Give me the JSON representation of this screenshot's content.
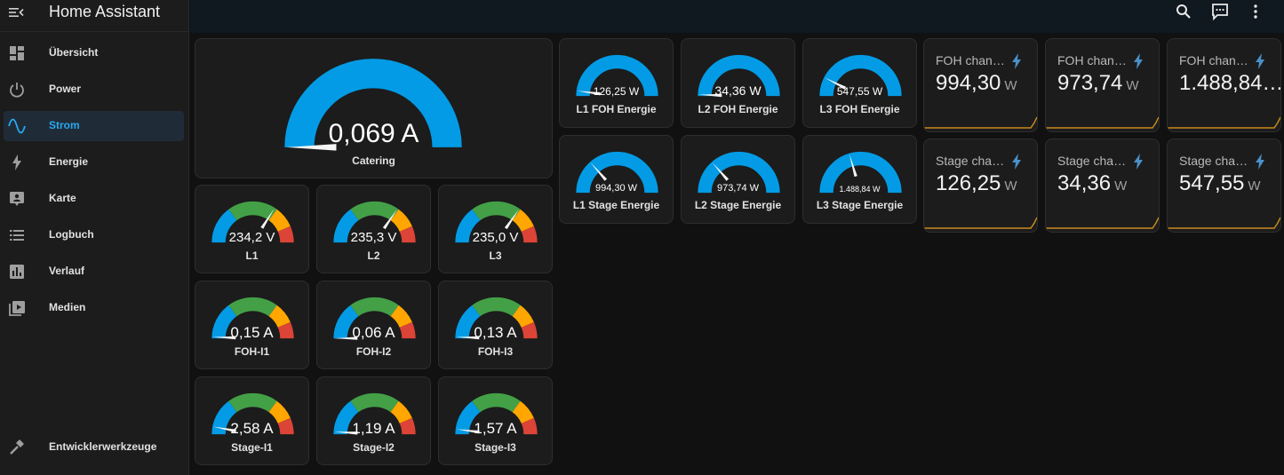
{
  "app": {
    "title": "Home Assistant"
  },
  "sidebar": {
    "items": [
      {
        "label": "Übersicht",
        "icon": "dashboard-icon",
        "active": false
      },
      {
        "label": "Power",
        "icon": "power-icon",
        "active": false
      },
      {
        "label": "Strom",
        "icon": "sine-wave-icon",
        "active": true
      },
      {
        "label": "Energie",
        "icon": "lightning-icon",
        "active": false
      },
      {
        "label": "Karte",
        "icon": "map-account-icon",
        "active": false
      },
      {
        "label": "Logbuch",
        "icon": "list-icon",
        "active": false
      },
      {
        "label": "Verlauf",
        "icon": "chart-icon",
        "active": false
      },
      {
        "label": "Medien",
        "icon": "media-play-icon",
        "active": false
      }
    ],
    "footer": {
      "label": "Entwicklerwerkzeuge",
      "icon": "hammer-icon"
    }
  },
  "topbar": {
    "icons": [
      "search-icon",
      "assist-chat-icon",
      "more-vert-icon"
    ]
  },
  "colors": {
    "accent": "#2aa8ef",
    "gauge_blue": "#039be5",
    "gauge_green": "#43a047",
    "gauge_yellow": "#ffa600",
    "gauge_red": "#db4437",
    "spark": "#c98a1d"
  },
  "catering": {
    "value": "0,069 A",
    "name": "Catering",
    "fraction": 0.0
  },
  "voltage": [
    {
      "value": "234,2 V",
      "name": "L1",
      "fraction": 0.68
    },
    {
      "value": "235,3 V",
      "name": "L2",
      "fraction": 0.69
    },
    {
      "value": "235,0 V",
      "name": "L3",
      "fraction": 0.69
    }
  ],
  "foh_current": [
    {
      "value": "0,15 A",
      "name": "FOH-I1",
      "fraction": 0.01
    },
    {
      "value": "0,06 A",
      "name": "FOH-I2",
      "fraction": 0.0
    },
    {
      "value": "0,13 A",
      "name": "FOH-I3",
      "fraction": 0.01
    }
  ],
  "stage_current": [
    {
      "value": "2,58 A",
      "name": "Stage-I1",
      "fraction": 0.06
    },
    {
      "value": "1,19 A",
      "name": "Stage-I2",
      "fraction": 0.02
    },
    {
      "value": "1,57 A",
      "name": "Stage-I3",
      "fraction": 0.04
    }
  ],
  "foh_energy": [
    {
      "value": "126,25 W",
      "name": "L1 FOH Energie",
      "fraction": 0.04
    },
    {
      "value": "34,36 W",
      "name": "L2 FOH Energie",
      "fraction": 0.01
    },
    {
      "value": "547,55 W",
      "name": "L3 FOH Energie",
      "fraction": 0.15
    }
  ],
  "stage_energy": [
    {
      "value": "994,30 W",
      "name": "L1 Stage Energie",
      "fraction": 0.27
    },
    {
      "value": "973,74 W",
      "name": "L2 Stage Energie",
      "fraction": 0.27
    },
    {
      "value": "1.488,84 W",
      "name": "L3 Stage Energie",
      "fraction": 0.41
    }
  ],
  "foh_sensors": [
    {
      "name": "FOH chann…",
      "value": "994,30",
      "unit": "W"
    },
    {
      "name": "FOH chann…",
      "value": "973,74",
      "unit": "W"
    },
    {
      "name": "FOH chann…",
      "value": "1.488,84…",
      "unit": ""
    }
  ],
  "stage_sensors": [
    {
      "name": "Stage chan…",
      "value": "126,25",
      "unit": "W"
    },
    {
      "name": "Stage chan…",
      "value": "34,36",
      "unit": "W"
    },
    {
      "name": "Stage chan…",
      "value": "547,55",
      "unit": "W"
    }
  ]
}
